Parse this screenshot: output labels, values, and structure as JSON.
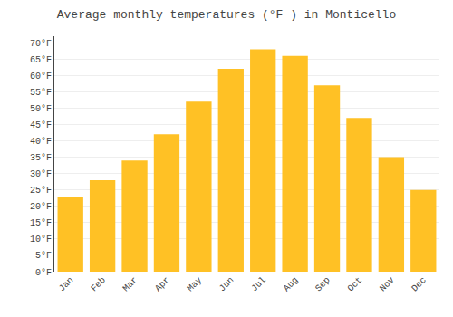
{
  "chart_data": {
    "type": "bar",
    "title": "Average monthly temperatures (°F ) in Monticello",
    "categories": [
      "Jan",
      "Feb",
      "Mar",
      "Apr",
      "May",
      "Jun",
      "Jul",
      "Aug",
      "Sep",
      "Oct",
      "Nov",
      "Dec"
    ],
    "values": [
      23,
      28,
      34,
      42,
      52,
      62,
      68,
      66,
      57,
      47,
      35,
      25
    ],
    "color": "#FFC125",
    "ylim": [
      0,
      72
    ],
    "yticks": [
      {
        "value": 0,
        "label": "0°F"
      },
      {
        "value": 5,
        "label": "5°F"
      },
      {
        "value": 10,
        "label": "10°F"
      },
      {
        "value": 15,
        "label": "15°F"
      },
      {
        "value": 20,
        "label": "20°F"
      },
      {
        "value": 25,
        "label": "25°F"
      },
      {
        "value": 30,
        "label": "30°F"
      },
      {
        "value": 35,
        "label": "35°F"
      },
      {
        "value": 40,
        "label": "40°F"
      },
      {
        "value": 45,
        "label": "45°F"
      },
      {
        "value": 50,
        "label": "50°F"
      },
      {
        "value": 55,
        "label": "55°F"
      },
      {
        "value": 60,
        "label": "60°F"
      },
      {
        "value": 65,
        "label": "65°F"
      },
      {
        "value": 70,
        "label": "70°F"
      }
    ],
    "grid": true
  }
}
